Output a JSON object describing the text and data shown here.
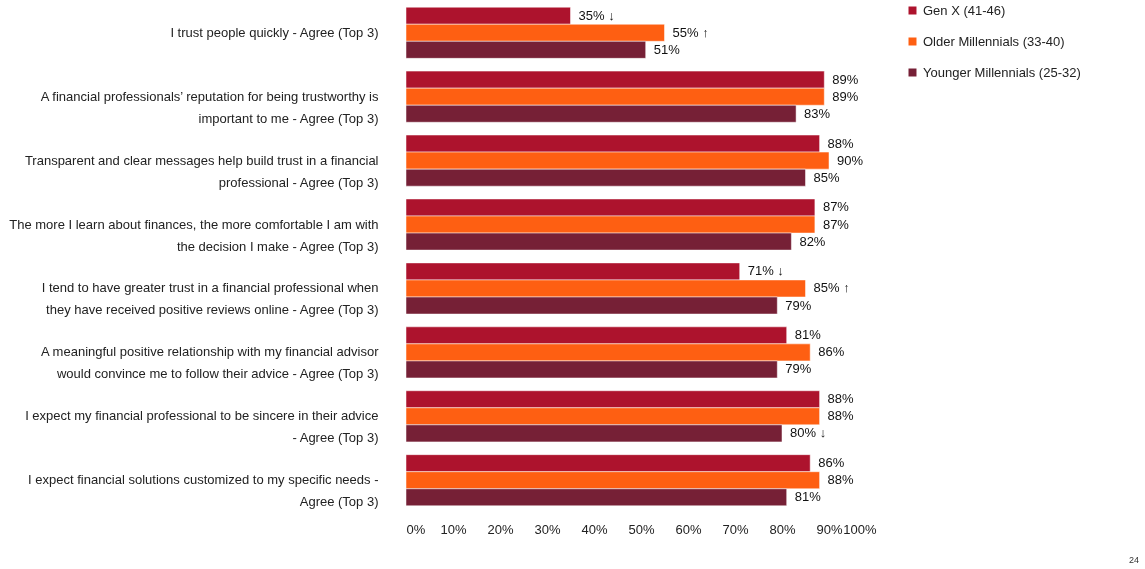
{
  "chart_data": {
    "type": "bar",
    "orientation": "horizontal",
    "categories": [
      "I trust people quickly - Agree (Top 3)",
      "A financial professionals’ reputation for being trustworthy is important to me  - Agree (Top 3)",
      "Transparent and clear messages help build trust in a financial professional - Agree (Top 3)",
      "The more I learn about finances, the more comfortable I am with the decision I make - Agree (Top 3)",
      "I tend to have greater trust in a financial professional when they have received positive reviews online - Agree (Top 3)",
      "A meaningful positive relationship with my financial advisor would convince me to follow their advice - Agree (Top 3)",
      "I expect my financial professional to be sincere in their advice - Agree (Top 3)",
      "I expect financial solutions customized to my specific needs - Agree (Top 3)"
    ],
    "series": [
      {
        "name": "Gen X (41-46)",
        "color": "#ad132d",
        "values": [
          35,
          89,
          88,
          87,
          71,
          81,
          88,
          86
        ],
        "value_labels": [
          "35% ↓",
          "89%",
          "88%",
          "87%",
          "71% ↓",
          "81%",
          "88%",
          "86%"
        ]
      },
      {
        "name": "Older Millennials (33-40)",
        "color": "#fe5f12",
        "values": [
          55,
          89,
          90,
          87,
          85,
          86,
          88,
          88
        ],
        "value_labels": [
          "55% ↑",
          "89%",
          "90%",
          "87%",
          "85% ↑",
          "86%",
          "88%",
          "88%"
        ]
      },
      {
        "name": "Younger Millennials (25-32)",
        "color": "#762036",
        "values": [
          51,
          83,
          85,
          82,
          79,
          79,
          80,
          81
        ],
        "value_labels": [
          "51%",
          "83%",
          "85%",
          "82%",
          "79%",
          "79%",
          "80% ↓",
          "81%"
        ]
      }
    ],
    "xlim": [
      0,
      100
    ],
    "xticks": [
      {
        "value": 0,
        "label": "0%"
      },
      {
        "value": 10,
        "label": "10%"
      },
      {
        "value": 20,
        "label": "20%"
      },
      {
        "value": 30,
        "label": "30%"
      },
      {
        "value": 40,
        "label": "40%"
      },
      {
        "value": 50,
        "label": "50%"
      },
      {
        "value": 60,
        "label": "60%"
      },
      {
        "value": 70,
        "label": "70%"
      },
      {
        "value": 80,
        "label": "80%"
      },
      {
        "value": 90,
        "label": "90%"
      },
      {
        "value": 100,
        "label": "100%"
      }
    ],
    "grid": false,
    "legend": "right",
    "annotations": [
      "24"
    ]
  }
}
